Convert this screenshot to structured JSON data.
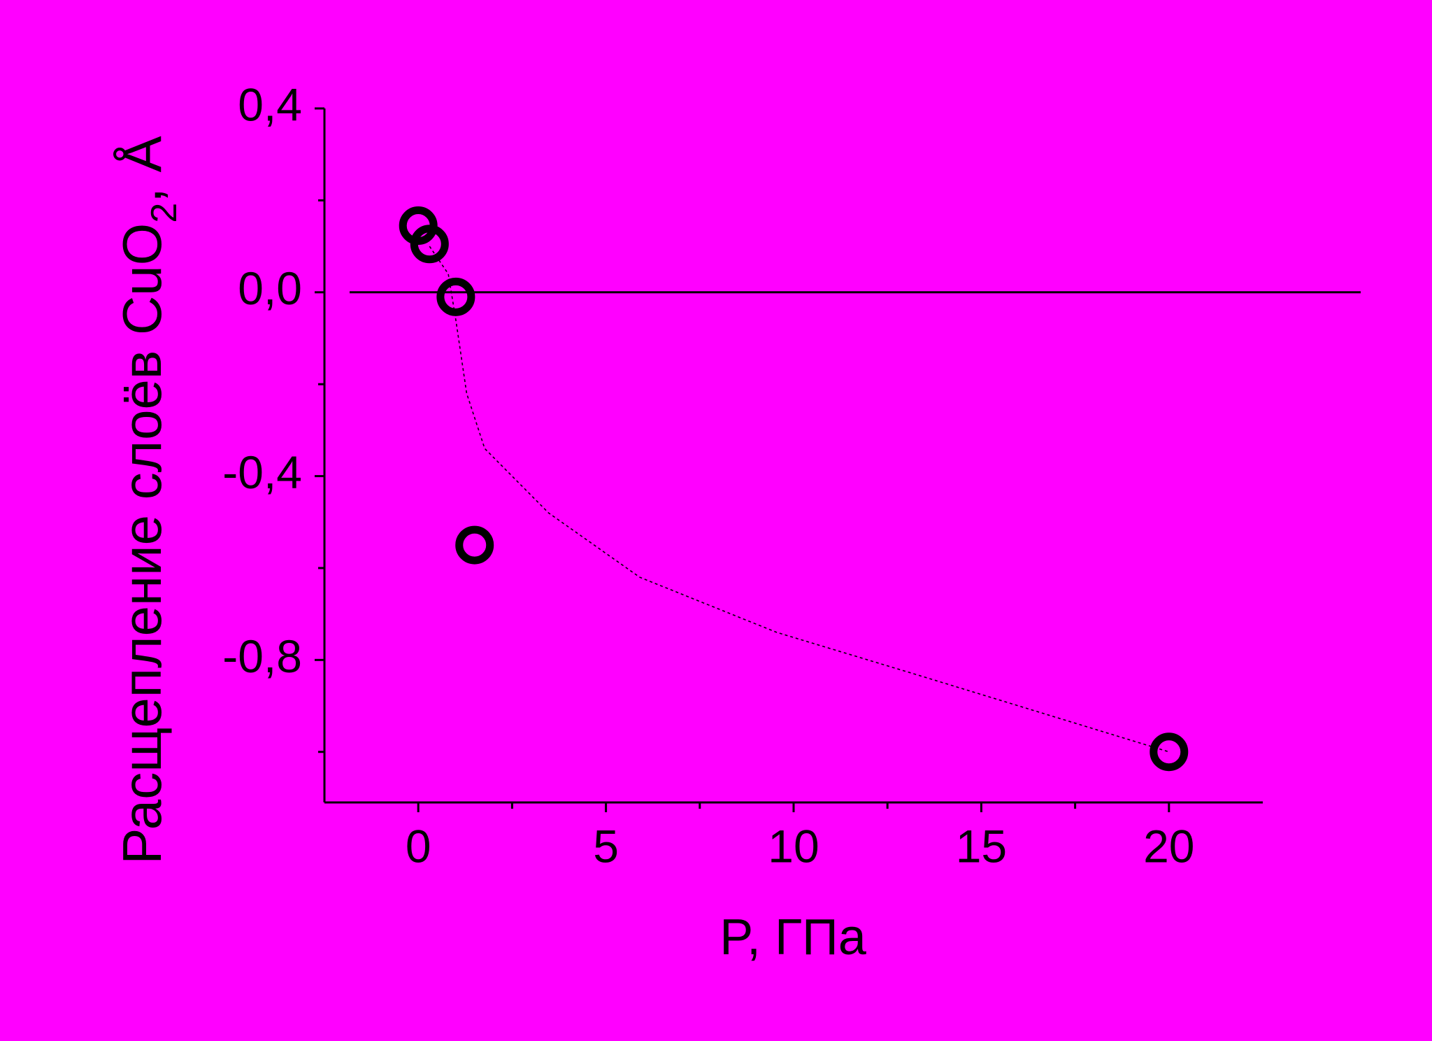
{
  "chart_data": {
    "type": "scatter",
    "xlabel": "P, ГПа",
    "ylabel": {
      "main": "Расщепление слоёв CuO",
      "sub": "2",
      "unit": ", Å"
    },
    "x": [
      0,
      0.3,
      1,
      1.5,
      20
    ],
    "values": [
      0.145,
      0.105,
      -0.01,
      -0.55,
      -1.0
    ],
    "color": "#000000",
    "fit": {
      "x": [
        0.3,
        0.8,
        1.0,
        1.29,
        1.77,
        3.47,
        5.9,
        9.55,
        13.2,
        16.8,
        20
      ],
      "values": [
        0.1,
        0.04,
        -0.06,
        -0.22,
        -0.34,
        -0.48,
        -0.62,
        -0.74,
        -0.83,
        -0.92,
        -1.0
      ]
    },
    "reference_line": 0,
    "xlim": [
      -2.5,
      22.5
    ],
    "ylim": [
      -1.11,
      0.4
    ],
    "xticks": [
      0,
      5,
      10,
      15,
      20
    ],
    "xticks_minor": [
      2.5,
      7.5,
      12.5,
      17.5
    ],
    "yticks": [
      {
        "value": -0.8,
        "label": "-0,8"
      },
      {
        "value": -0.4,
        "label": "-0,4"
      },
      {
        "value": 0,
        "label": "0,0"
      },
      {
        "value": 0.4,
        "label": "0,4"
      }
    ],
    "yticks_minor": [
      -1.0,
      -0.6,
      -0.2,
      0.2
    ]
  }
}
